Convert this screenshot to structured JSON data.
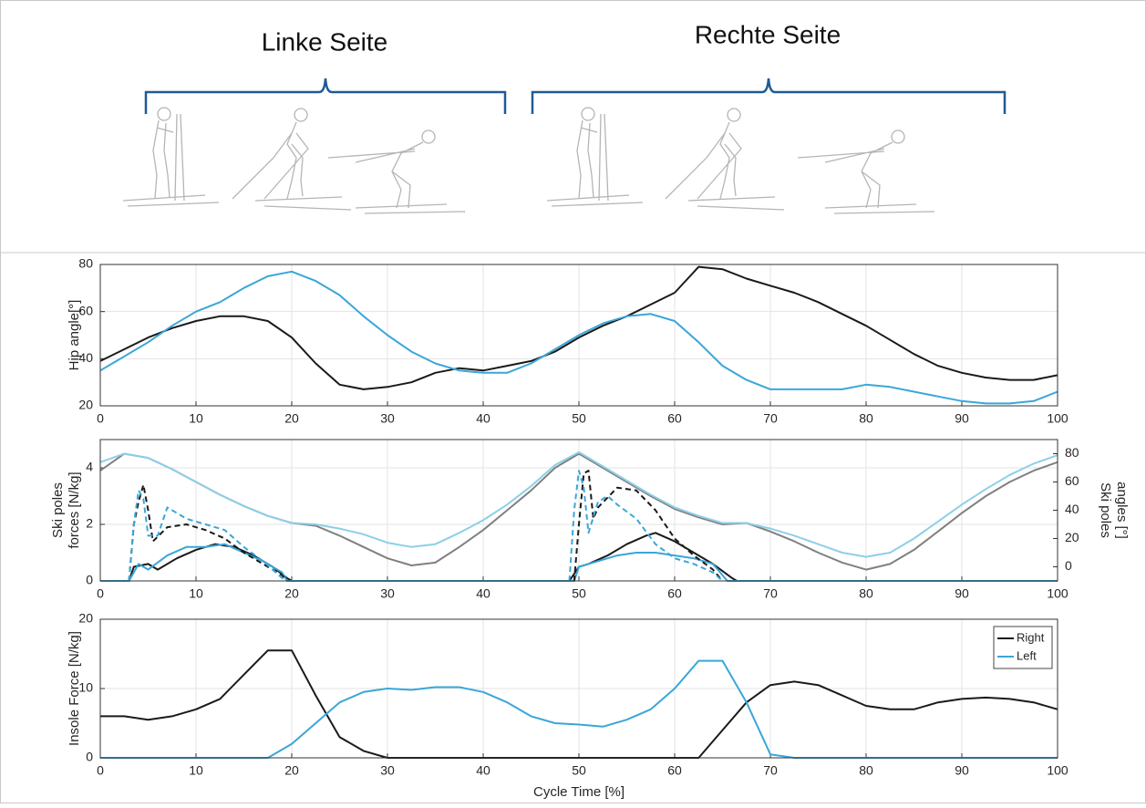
{
  "header": {
    "left": "Linke Seite",
    "right": "Rechte Seite"
  },
  "chart_data": [
    {
      "type": "line",
      "ylabel": [
        "Hip angle[°]"
      ],
      "x": [
        0,
        2.5,
        5,
        7.5,
        10,
        12.5,
        15,
        17.5,
        20,
        22.5,
        25,
        27.5,
        30,
        32.5,
        35,
        37.5,
        40,
        42.5,
        45,
        47.5,
        50,
        52.5,
        55,
        57.5,
        60,
        62.5,
        65,
        67.5,
        70,
        72.5,
        75,
        77.5,
        80,
        82.5,
        85,
        87.5,
        90,
        92.5,
        95,
        97.5,
        100
      ],
      "xlim": [
        0,
        100
      ],
      "xticks": [
        0,
        10,
        20,
        30,
        40,
        50,
        60,
        70,
        80,
        90,
        100
      ],
      "ylim": [
        20,
        80
      ],
      "yticks": [
        20,
        40,
        60,
        80
      ],
      "grid": true,
      "series": [
        {
          "color": "#1a1a1a",
          "values": [
            39,
            44,
            49,
            53,
            56,
            58,
            58,
            56,
            49,
            38,
            29,
            27,
            28,
            30,
            34,
            36,
            35,
            37,
            39,
            43,
            49,
            54,
            58,
            63,
            68,
            79,
            78,
            74,
            71,
            68,
            64,
            59,
            54,
            48,
            42,
            37,
            34,
            32,
            31,
            31,
            33
          ]
        },
        {
          "color": "#3aa6d9",
          "values": [
            35,
            41,
            47,
            54,
            60,
            64,
            70,
            75,
            77,
            73,
            67,
            58,
            50,
            43,
            38,
            35,
            34,
            34,
            38,
            44,
            50,
            55,
            58,
            59,
            56,
            47,
            37,
            31,
            27,
            27,
            27,
            27,
            29,
            28,
            26,
            24,
            22,
            21,
            21,
            22,
            26
          ]
        }
      ]
    },
    {
      "type": "line",
      "ylabel": [
        "Ski poles",
        "forces [N/kg]"
      ],
      "y2label": [
        "Ski poles",
        "angles [°]"
      ],
      "x": [
        0,
        2.5,
        5,
        7.5,
        10,
        12.5,
        15,
        17.5,
        20,
        22.5,
        25,
        27.5,
        30,
        32.5,
        35,
        37.5,
        40,
        42.5,
        45,
        47.5,
        50,
        52.5,
        55,
        57.5,
        60,
        62.5,
        65,
        67.5,
        70,
        72.5,
        75,
        77.5,
        80,
        82.5,
        85,
        87.5,
        90,
        92.5,
        95,
        97.5,
        100
      ],
      "xlim": [
        0,
        100
      ],
      "xticks": [
        0,
        10,
        20,
        30,
        40,
        50,
        60,
        70,
        80,
        90,
        100
      ],
      "ylim": [
        0,
        5
      ],
      "yticks": [
        0,
        2,
        4
      ],
      "y2lim": [
        -10,
        90
      ],
      "y2ticks": [
        0,
        20,
        40,
        60,
        80
      ],
      "grid": true,
      "series": [
        {
          "color": "#808080",
          "axis": "y2",
          "values": [
            68,
            80,
            77,
            69,
            60,
            51,
            43,
            36,
            31,
            29,
            22,
            14,
            6,
            1,
            3,
            14,
            26,
            40,
            54,
            70,
            80,
            70,
            60,
            50,
            41,
            35,
            30,
            31,
            25,
            18,
            10,
            3,
            -2,
            2,
            12,
            25,
            38,
            50,
            60,
            68,
            74
          ]
        },
        {
          "color": "#8ecfe8",
          "axis": "y2",
          "values": [
            74,
            80,
            77,
            69,
            60,
            51,
            43,
            36,
            31,
            30,
            27,
            23,
            17,
            14,
            16,
            24,
            33,
            44,
            57,
            72,
            81,
            71,
            61,
            51,
            42,
            36,
            31,
            31,
            27,
            22,
            16,
            10,
            7,
            10,
            20,
            32,
            44,
            55,
            65,
            73,
            79
          ]
        },
        {
          "color": "#1a1a1a",
          "x": [
            0,
            3,
            3.5,
            5,
            6,
            8,
            10,
            12,
            14,
            16,
            18,
            19.5,
            20,
            48.5,
            49,
            50,
            51,
            53,
            55,
            57,
            58,
            60,
            62,
            64,
            66,
            66.5,
            100
          ],
          "values": [
            0,
            0,
            0.5,
            0.6,
            0.4,
            0.8,
            1.1,
            1.3,
            1.2,
            0.9,
            0.5,
            0.1,
            0,
            0,
            0,
            0.5,
            0.6,
            0.9,
            1.3,
            1.6,
            1.7,
            1.4,
            1.0,
            0.6,
            0.1,
            0,
            0
          ]
        },
        {
          "color": "#3aa6d9",
          "x": [
            0,
            3,
            4,
            5,
            7,
            9,
            11,
            13,
            15,
            17,
            19,
            19.5,
            48.5,
            49.5,
            50,
            52,
            54,
            56,
            58,
            60,
            62,
            64,
            65.5,
            100
          ],
          "values": [
            0,
            0,
            0.6,
            0.4,
            0.9,
            1.2,
            1.2,
            1.3,
            1.0,
            0.7,
            0.3,
            0,
            0,
            0,
            0.5,
            0.7,
            0.9,
            1.0,
            1.0,
            0.9,
            0.8,
            0.6,
            0,
            0
          ]
        },
        {
          "color": "#1a1a1a",
          "dash": true,
          "x": [
            3,
            3.5,
            4,
            4.5,
            5,
            5.5,
            7,
            9,
            11,
            13,
            15,
            17,
            19,
            19.5,
            30,
            49.5,
            50,
            50.5,
            51,
            51.5,
            52,
            54,
            56,
            58,
            60,
            62,
            64,
            65
          ],
          "values": [
            0,
            2,
            2.8,
            3.4,
            2.5,
            1.4,
            1.9,
            2.0,
            1.8,
            1.5,
            1.0,
            0.6,
            0.2,
            0,
            null,
            0,
            2,
            3.8,
            3.9,
            2.2,
            2.6,
            3.3,
            3.2,
            2.5,
            1.5,
            0.9,
            0.4,
            0
          ]
        },
        {
          "color": "#3aa6d9",
          "dash": true,
          "x": [
            3,
            3.5,
            4,
            4.5,
            5,
            6,
            7,
            9,
            11,
            13,
            15,
            17,
            19,
            19.5,
            30,
            49,
            49.5,
            50,
            50.5,
            51,
            52,
            53,
            54,
            56,
            58,
            60,
            62,
            64,
            65
          ],
          "values": [
            0,
            2,
            3.2,
            2.9,
            1.6,
            1.6,
            2.6,
            2.2,
            2.0,
            1.8,
            1.2,
            0.7,
            0.1,
            0,
            null,
            0,
            2.5,
            3.9,
            3.3,
            1.7,
            2.8,
            3.0,
            2.7,
            2.2,
            1.3,
            0.8,
            0.6,
            0.3,
            0
          ]
        }
      ]
    },
    {
      "type": "line",
      "ylabel": [
        "Insole Force [N/kg]"
      ],
      "xlabel": "Cycle Time [%]",
      "x": [
        0,
        2.5,
        5,
        7.5,
        10,
        12.5,
        15,
        17.5,
        20,
        22.5,
        25,
        27.5,
        30,
        32.5,
        35,
        37.5,
        40,
        42.5,
        45,
        47.5,
        50,
        52.5,
        55,
        57.5,
        60,
        62.5,
        65,
        67.5,
        70,
        72.5,
        75,
        77.5,
        80,
        82.5,
        85,
        87.5,
        90,
        92.5,
        95,
        97.5,
        100
      ],
      "xlim": [
        0,
        100
      ],
      "xticks": [
        0,
        10,
        20,
        30,
        40,
        50,
        60,
        70,
        80,
        90,
        100
      ],
      "ylim": [
        0,
        20
      ],
      "yticks": [
        0,
        10,
        20
      ],
      "grid": true,
      "legend": "upper right",
      "series": [
        {
          "name": "Right",
          "color": "#1a1a1a",
          "values": [
            6,
            6,
            5.5,
            6,
            7,
            8.5,
            12,
            15.5,
            15.5,
            9,
            3,
            1,
            0,
            0,
            0,
            0,
            0,
            0,
            0,
            0,
            0,
            0,
            0,
            0,
            0,
            0,
            4,
            8,
            10.5,
            11,
            10.5,
            9,
            7.5,
            7,
            7,
            8,
            8.5,
            8.7,
            8.5,
            8,
            7
          ]
        },
        {
          "name": "Left",
          "color": "#3aa6d9",
          "values": [
            0,
            0,
            0,
            0,
            0,
            0,
            0,
            0,
            2,
            5,
            8,
            9.5,
            10,
            9.8,
            10.2,
            10.2,
            9.5,
            8,
            6,
            5,
            4.8,
            4.5,
            5.5,
            7,
            10,
            14,
            14,
            8,
            0.5,
            0,
            0,
            0,
            0,
            0,
            0,
            0,
            0,
            0,
            0,
            0,
            0
          ]
        }
      ]
    }
  ]
}
